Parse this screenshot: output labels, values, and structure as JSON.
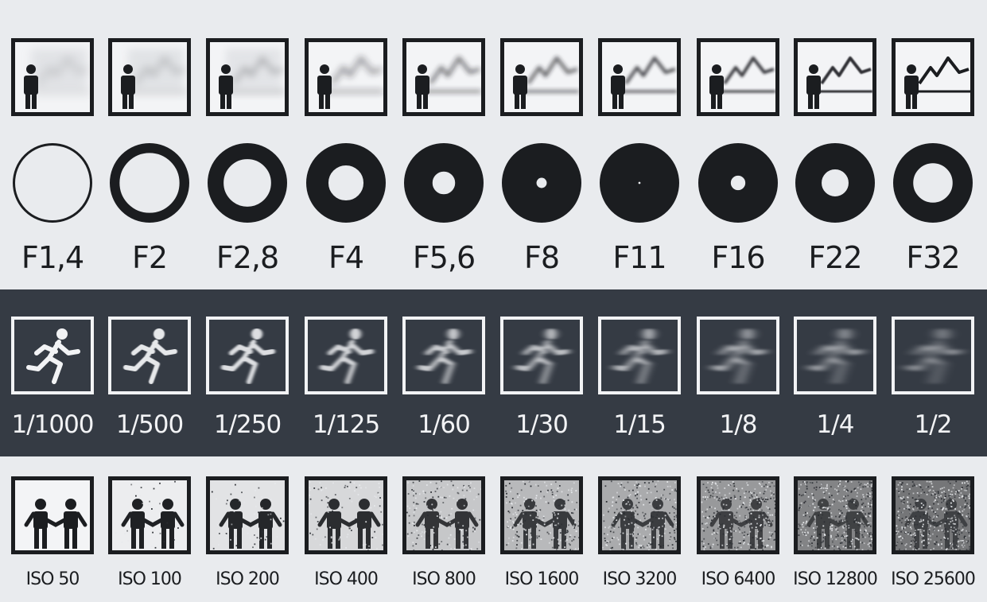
{
  "aperture": {
    "labels": [
      "F1,4",
      "F2",
      "F2,8",
      "F4",
      "F5,6",
      "F8",
      "F11",
      "F16",
      "F22",
      "F32"
    ],
    "ring_fill": [
      0.0,
      0.12,
      0.22,
      0.32,
      0.42,
      0.52,
      0.62,
      0.72,
      0.82,
      0.92
    ],
    "depth_of_field_sharpness": [
      0.0,
      0.1,
      0.2,
      0.3,
      0.45,
      0.55,
      0.65,
      0.75,
      0.85,
      1.0
    ]
  },
  "shutter": {
    "labels": [
      "1/1000",
      "1/500",
      "1/250",
      "1/125",
      "1/60",
      "1/30",
      "1/15",
      "1/8",
      "1/4",
      "1/2"
    ],
    "motion_blur": [
      0.0,
      0.1,
      0.2,
      0.3,
      0.4,
      0.5,
      0.6,
      0.7,
      0.8,
      0.9
    ]
  },
  "iso": {
    "labels": [
      "ISO 50",
      "ISO 100",
      "ISO 200",
      "ISO 400",
      "ISO 800",
      "ISO 1600",
      "ISO 3200",
      "ISO 6400",
      "ISO 12800",
      "ISO 25600"
    ],
    "noise": [
      0.0,
      0.05,
      0.12,
      0.2,
      0.32,
      0.42,
      0.52,
      0.65,
      0.8,
      0.9
    ]
  },
  "colors": {
    "ink": "#1b1d20",
    "paper": "#e9ebee",
    "band": "#353b44",
    "white": "#f2f3f5"
  },
  "icons": {
    "aperture_row": "person-landscape-icon",
    "aperture_circle": "aperture-icon",
    "shutter_row": "running-person-icon",
    "iso_row": "two-people-handshake-icon"
  }
}
